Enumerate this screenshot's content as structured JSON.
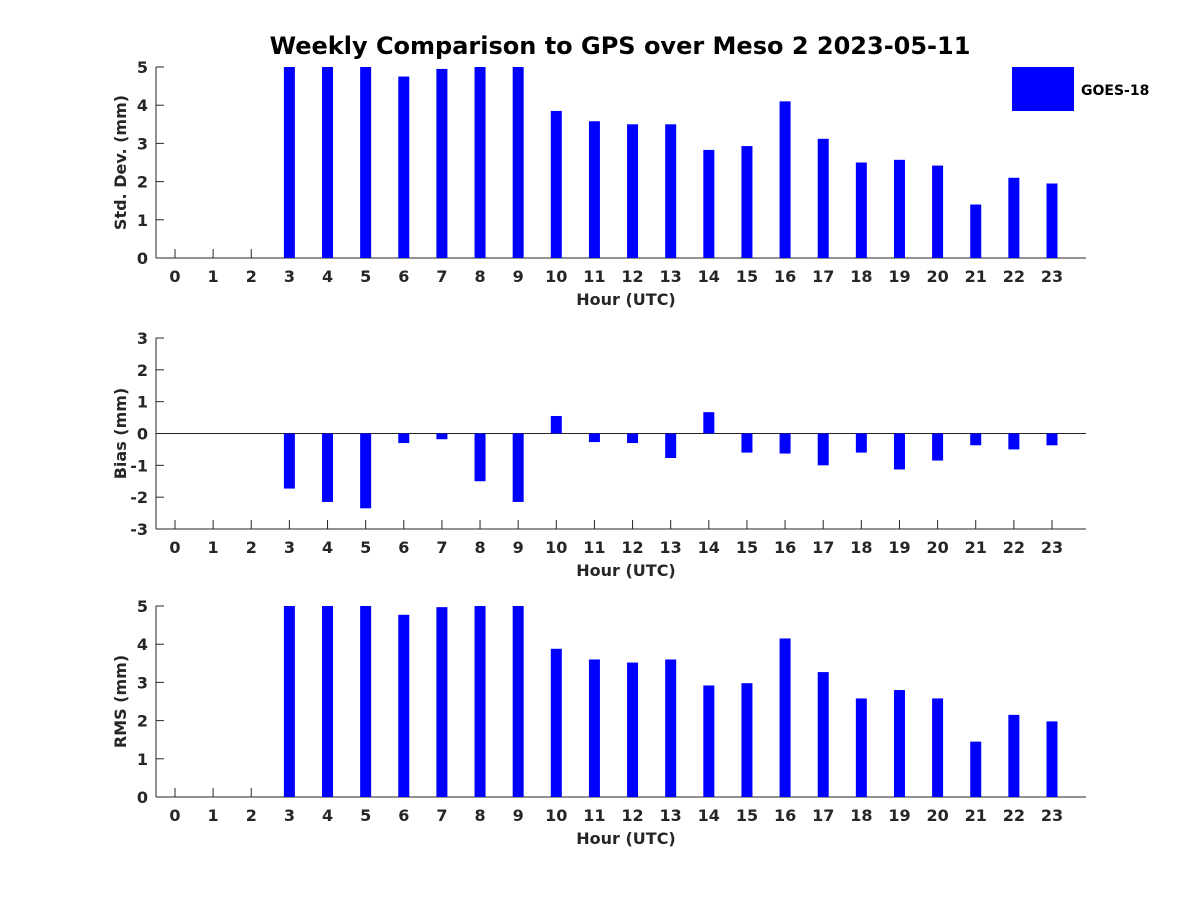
{
  "title": "Weekly Comparison to GPS over Meso 2 2023-05-11",
  "legend": {
    "label": "GOES-18",
    "color": "#0000ff",
    "placement": "top-right"
  },
  "chart_data": [
    {
      "type": "bar",
      "xlabel": "Hour (UTC)",
      "ylabel": "Std. Dev. (mm)",
      "ylim": [
        0,
        5
      ],
      "yticks": [
        0,
        1,
        2,
        3,
        4,
        5
      ],
      "categories": [
        "0",
        "1",
        "2",
        "3",
        "4",
        "5",
        "6",
        "7",
        "8",
        "9",
        "10",
        "11",
        "12",
        "13",
        "14",
        "15",
        "16",
        "17",
        "18",
        "19",
        "20",
        "21",
        "22",
        "23"
      ],
      "series": [
        {
          "name": "GOES-18",
          "color": "#0000ff",
          "values": [
            null,
            null,
            null,
            5.0,
            5.0,
            5.0,
            4.75,
            4.95,
            5.0,
            5.0,
            3.85,
            3.58,
            3.5,
            3.5,
            2.83,
            2.93,
            4.1,
            3.12,
            2.5,
            2.57,
            2.42,
            1.4,
            2.1,
            1.95
          ]
        }
      ]
    },
    {
      "type": "bar",
      "xlabel": "Hour (UTC)",
      "ylabel": "Bias (mm)",
      "ylim": [
        -3,
        3
      ],
      "yticks": [
        -3,
        -2,
        -1,
        0,
        1,
        2,
        3
      ],
      "categories": [
        "0",
        "1",
        "2",
        "3",
        "4",
        "5",
        "6",
        "7",
        "8",
        "9",
        "10",
        "11",
        "12",
        "13",
        "14",
        "15",
        "16",
        "17",
        "18",
        "19",
        "20",
        "21",
        "22",
        "23"
      ],
      "series": [
        {
          "name": "GOES-18",
          "color": "#0000ff",
          "values": [
            null,
            null,
            null,
            -1.73,
            -2.15,
            -2.35,
            -0.3,
            -0.18,
            -1.5,
            -2.15,
            0.55,
            -0.27,
            -0.3,
            -0.77,
            0.67,
            -0.6,
            -0.63,
            -1.0,
            -0.6,
            -1.13,
            -0.85,
            -0.37,
            -0.5,
            -0.37
          ]
        }
      ]
    },
    {
      "type": "bar",
      "xlabel": "Hour (UTC)",
      "ylabel": "RMS (mm)",
      "ylim": [
        0,
        5
      ],
      "yticks": [
        0,
        1,
        2,
        3,
        4,
        5
      ],
      "categories": [
        "0",
        "1",
        "2",
        "3",
        "4",
        "5",
        "6",
        "7",
        "8",
        "9",
        "10",
        "11",
        "12",
        "13",
        "14",
        "15",
        "16",
        "17",
        "18",
        "19",
        "20",
        "21",
        "22",
        "23"
      ],
      "series": [
        {
          "name": "GOES-18",
          "color": "#0000ff",
          "values": [
            null,
            null,
            null,
            5.0,
            5.0,
            5.0,
            4.77,
            4.97,
            5.0,
            5.0,
            3.88,
            3.6,
            3.52,
            3.6,
            2.92,
            2.98,
            4.15,
            3.27,
            2.58,
            2.8,
            2.58,
            1.45,
            2.15,
            1.98
          ]
        }
      ]
    }
  ]
}
